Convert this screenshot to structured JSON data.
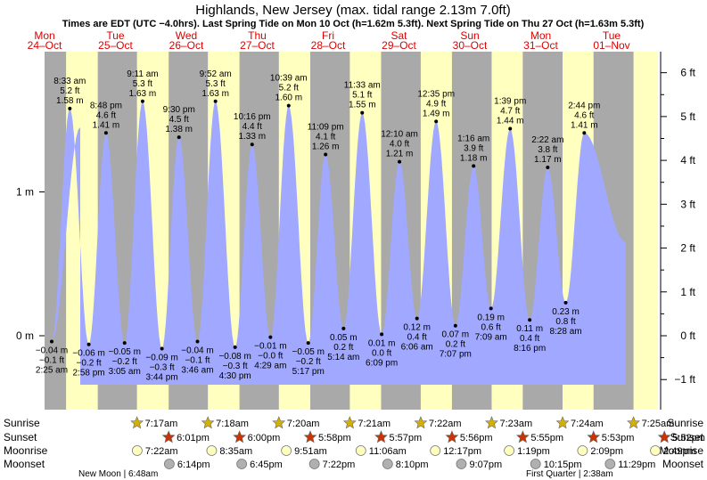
{
  "title": "Highlands, New Jersey (max. tidal range 2.13m 7.0ft)",
  "subtitle": "Times are EDT (UTC −4.0hrs). Last Spring Tide on Mon 10 Oct (h=1.62m 5.3ft). Next Spring Tide on Thu 27 Oct (h=1.63m 5.3ft)",
  "colors": {
    "night": "#a9a9a9",
    "day": "#ffffc0",
    "water": "#a0a8ff",
    "date_text": "#dd0000",
    "sun_star": "#d4b000",
    "sunset_star": "#cc3300",
    "moonrise": "#ffffc0",
    "moonset": "#b0b0b0"
  },
  "days": [
    {
      "dow": "Mon",
      "date": "24–Oct"
    },
    {
      "dow": "Tue",
      "date": "25–Oct"
    },
    {
      "dow": "Wed",
      "date": "26–Oct"
    },
    {
      "dow": "Thu",
      "date": "27–Oct"
    },
    {
      "dow": "Fri",
      "date": "28–Oct"
    },
    {
      "dow": "Sat",
      "date": "29–Oct"
    },
    {
      "dow": "Sun",
      "date": "30–Oct"
    },
    {
      "dow": "Mon",
      "date": "31–Oct"
    },
    {
      "dow": "Tue",
      "date": "01–Nov"
    }
  ],
  "chart_data": {
    "type": "area",
    "title": "Highlands, New Jersey (max. tidal range 2.13m 7.0ft)",
    "y_left_ticks": [
      "1 m",
      "0 m"
    ],
    "y_right_ticks": [
      "6 ft",
      "5 ft",
      "4 ft",
      "3 ft",
      "2 ft",
      "1 ft",
      "0 ft",
      "−1 ft"
    ],
    "tides": [
      {
        "day": 0,
        "time": "2:25 am",
        "m": "−0.04 m",
        "ft": "−0.1 ft",
        "type": "low"
      },
      {
        "day": 0,
        "time": "8:33 am",
        "m": "1.58 m",
        "ft": "5.2 ft",
        "type": "high"
      },
      {
        "day": 0,
        "time": "2:58 pm",
        "m": "−0.06 m",
        "ft": "−0.2 ft",
        "type": "low"
      },
      {
        "day": 0,
        "time": "8:48 pm",
        "m": "1.41 m",
        "ft": "4.6 ft",
        "type": "high"
      },
      {
        "day": 1,
        "time": "3:05 am",
        "m": "−0.05 m",
        "ft": "−0.2 ft",
        "type": "low"
      },
      {
        "day": 1,
        "time": "9:11 am",
        "m": "1.63 m",
        "ft": "5.3 ft",
        "type": "high"
      },
      {
        "day": 1,
        "time": "3:44 pm",
        "m": "−0.09 m",
        "ft": "−0.3 ft",
        "type": "low"
      },
      {
        "day": 1,
        "time": "9:30 pm",
        "m": "1.38 m",
        "ft": "4.5 ft",
        "type": "high"
      },
      {
        "day": 2,
        "time": "3:46 am",
        "m": "−0.04 m",
        "ft": "−0.1 ft",
        "type": "low"
      },
      {
        "day": 2,
        "time": "9:52 am",
        "m": "1.63 m",
        "ft": "5.3 ft",
        "type": "high"
      },
      {
        "day": 2,
        "time": "4:30 pm",
        "m": "−0.08 m",
        "ft": "−0.3 ft",
        "type": "low"
      },
      {
        "day": 2,
        "time": "10:16 pm",
        "m": "1.33 m",
        "ft": "4.4 ft",
        "type": "high"
      },
      {
        "day": 3,
        "time": "4:29 am",
        "m": "−0.01 m",
        "ft": "−0.0 ft",
        "type": "low"
      },
      {
        "day": 3,
        "time": "10:39 am",
        "m": "1.60 m",
        "ft": "5.2 ft",
        "type": "high"
      },
      {
        "day": 3,
        "time": "5:17 pm",
        "m": "−0.05 m",
        "ft": "−0.2 ft",
        "type": "low"
      },
      {
        "day": 3,
        "time": "11:09 pm",
        "m": "1.26 m",
        "ft": "4.1 ft",
        "type": "high"
      },
      {
        "day": 4,
        "time": "5:14 am",
        "m": "0.05 m",
        "ft": "0.2 ft",
        "type": "low"
      },
      {
        "day": 4,
        "time": "11:33 am",
        "m": "1.55 m",
        "ft": "5.1 ft",
        "type": "high"
      },
      {
        "day": 4,
        "time": "6:09 pm",
        "m": "0.01 m",
        "ft": "0.0 ft",
        "type": "low"
      },
      {
        "day": 5,
        "time": "12:10 am",
        "m": "1.21 m",
        "ft": "4.0 ft",
        "type": "high"
      },
      {
        "day": 5,
        "time": "6:06 am",
        "m": "0.12 m",
        "ft": "0.4 ft",
        "type": "low"
      },
      {
        "day": 5,
        "time": "12:35 pm",
        "m": "1.49 m",
        "ft": "4.9 ft",
        "type": "high"
      },
      {
        "day": 5,
        "time": "7:07 pm",
        "m": "0.07 m",
        "ft": "0.2 ft",
        "type": "low"
      },
      {
        "day": 6,
        "time": "1:16 am",
        "m": "1.18 m",
        "ft": "3.9 ft",
        "type": "high"
      },
      {
        "day": 6,
        "time": "7:09 am",
        "m": "0.19 m",
        "ft": "0.6 ft",
        "type": "low"
      },
      {
        "day": 6,
        "time": "1:39 pm",
        "m": "1.44 m",
        "ft": "4.7 ft",
        "type": "high"
      },
      {
        "day": 6,
        "time": "8:16 pm",
        "m": "0.11 m",
        "ft": "0.4 ft",
        "type": "low"
      },
      {
        "day": 7,
        "time": "2:22 am",
        "m": "1.17 m",
        "ft": "3.8 ft",
        "type": "high"
      },
      {
        "day": 7,
        "time": "8:28 am",
        "m": "0.23 m",
        "ft": "0.8 ft",
        "type": "low"
      },
      {
        "day": 7,
        "time": "2:44 pm",
        "m": "1.41 m",
        "ft": "4.6 ft",
        "type": "high"
      }
    ]
  },
  "sun_moon": {
    "row_labels": [
      "Sunrise",
      "Sunset",
      "Moonrise",
      "Moonset"
    ],
    "sunrise": [
      "7:17am",
      "7:18am",
      "7:20am",
      "7:21am",
      "7:22am",
      "7:23am",
      "7:24am",
      "7:25am"
    ],
    "sunset": [
      "6:01pm",
      "6:00pm",
      "5:58pm",
      "5:57pm",
      "5:56pm",
      "5:55pm",
      "5:53pm",
      "5:52pm"
    ],
    "moonrise": [
      "7:22am",
      "8:35am",
      "9:51am",
      "11:06am",
      "12:17pm",
      "1:19pm",
      "2:09pm",
      "2:49pm"
    ],
    "moonset": [
      "6:14pm",
      "6:45pm",
      "7:22pm",
      "8:10pm",
      "9:07pm",
      "10:15pm",
      "11:29pm"
    ],
    "new_moon": "New Moon | 6:48am",
    "first_quarter": "First Quarter | 2:38am"
  }
}
